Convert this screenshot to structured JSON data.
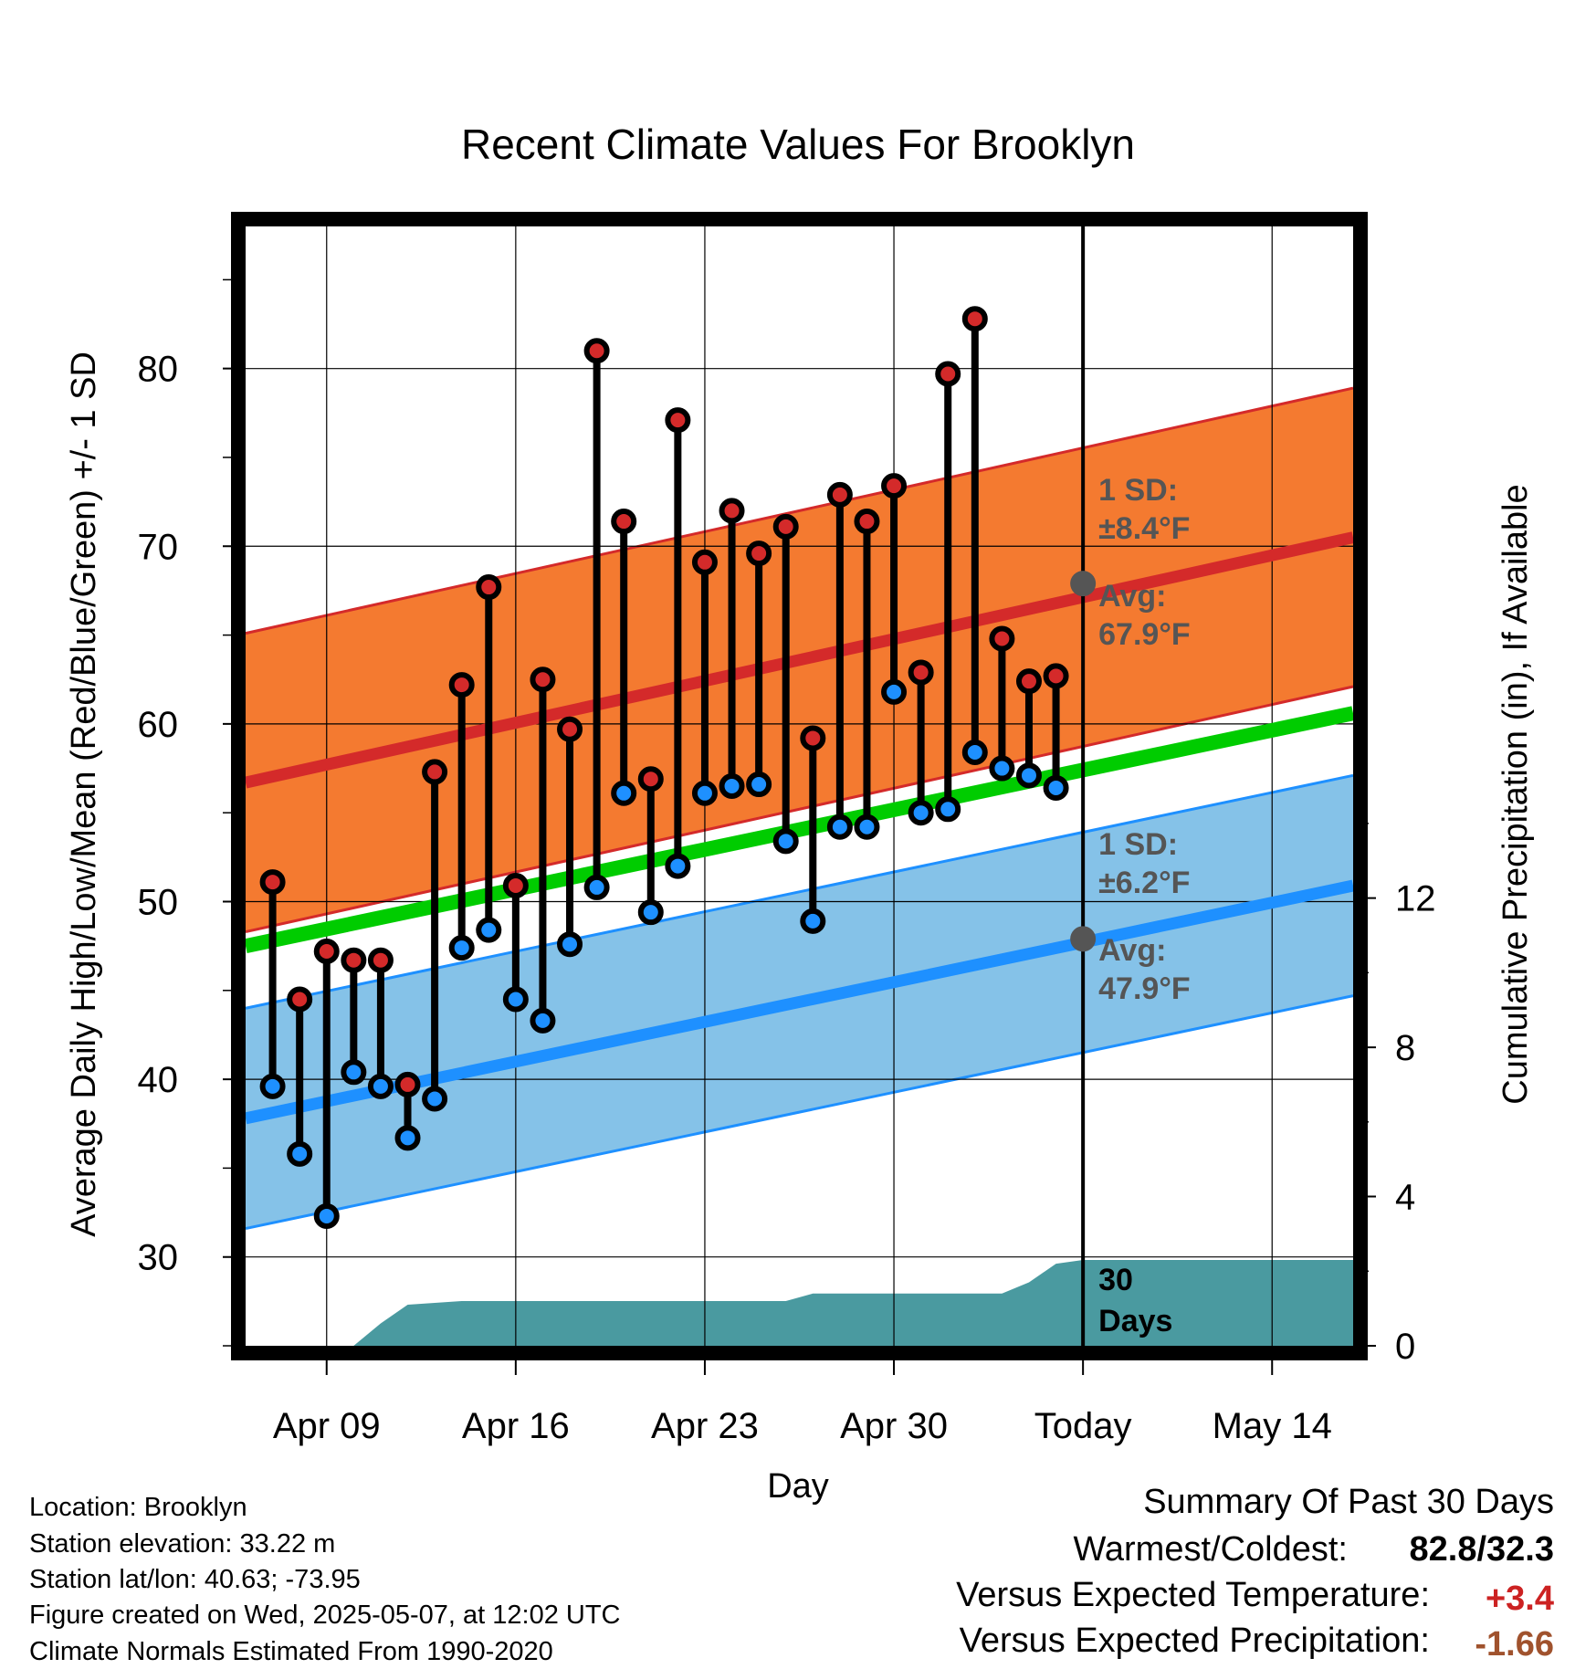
{
  "chart_data": {
    "type": "line",
    "title": "Recent Climate Values For Brooklyn",
    "xlabel": "Day",
    "ylabel": "Average Daily High/Low/Mean (Red/Blue/Green) +/- 1 SD",
    "y2label": "Cumulative Precipitation (in), If Available",
    "ylim": [
      25,
      88
    ],
    "y2lim": [
      0,
      30
    ],
    "xlim": [
      "2025-04-06",
      "2025-05-17"
    ],
    "x_ticks": [
      {
        "date": "2025-04-09",
        "label": "Apr 09"
      },
      {
        "date": "2025-04-16",
        "label": "Apr 16"
      },
      {
        "date": "2025-04-23",
        "label": "Apr 23"
      },
      {
        "date": "2025-04-30",
        "label": "Apr 30"
      },
      {
        "date": "2025-05-07",
        "label": "Today"
      },
      {
        "date": "2025-05-14",
        "label": "May 14"
      }
    ],
    "y_ticks": [
      30,
      40,
      50,
      60,
      70,
      80
    ],
    "y2_ticks": [
      0,
      4,
      8,
      12
    ],
    "grid": true,
    "today": "2025-05-07",
    "daily": [
      {
        "date": "2025-04-07",
        "high": 51.1,
        "low": 39.6
      },
      {
        "date": "2025-04-08",
        "high": 44.5,
        "low": 35.8
      },
      {
        "date": "2025-04-09",
        "high": 47.2,
        "low": 32.3
      },
      {
        "date": "2025-04-10",
        "high": 46.7,
        "low": 40.4
      },
      {
        "date": "2025-04-11",
        "high": 46.7,
        "low": 39.6
      },
      {
        "date": "2025-04-12",
        "high": 39.7,
        "low": 36.7
      },
      {
        "date": "2025-04-13",
        "high": 57.3,
        "low": 38.9
      },
      {
        "date": "2025-04-14",
        "high": 62.2,
        "low": 47.4
      },
      {
        "date": "2025-04-15",
        "high": 67.7,
        "low": 48.4
      },
      {
        "date": "2025-04-16",
        "high": 50.9,
        "low": 44.5
      },
      {
        "date": "2025-04-17",
        "high": 62.5,
        "low": 43.3
      },
      {
        "date": "2025-04-18",
        "high": 59.7,
        "low": 47.6
      },
      {
        "date": "2025-04-19",
        "high": 81.0,
        "low": 50.8
      },
      {
        "date": "2025-04-20",
        "high": 71.4,
        "low": 56.1
      },
      {
        "date": "2025-04-21",
        "high": 56.9,
        "low": 49.4
      },
      {
        "date": "2025-04-22",
        "high": 77.1,
        "low": 52.0
      },
      {
        "date": "2025-04-23",
        "high": 69.1,
        "low": 56.1
      },
      {
        "date": "2025-04-24",
        "high": 72.0,
        "low": 56.5
      },
      {
        "date": "2025-04-25",
        "high": 69.6,
        "low": 56.6
      },
      {
        "date": "2025-04-26",
        "high": 71.1,
        "low": 53.4
      },
      {
        "date": "2025-04-27",
        "high": 59.2,
        "low": 48.9
      },
      {
        "date": "2025-04-28",
        "high": 72.9,
        "low": 54.2
      },
      {
        "date": "2025-04-29",
        "high": 71.4,
        "low": 54.2
      },
      {
        "date": "2025-04-30",
        "high": 73.4,
        "low": 61.8
      },
      {
        "date": "2025-05-01",
        "high": 62.9,
        "low": 55.0
      },
      {
        "date": "2025-05-02",
        "high": 79.7,
        "low": 55.2
      },
      {
        "date": "2025-05-03",
        "high": 82.8,
        "low": 58.4
      },
      {
        "date": "2025-05-04",
        "high": 64.8,
        "low": 57.5
      },
      {
        "date": "2025-05-05",
        "high": 62.4,
        "low": 57.1
      },
      {
        "date": "2025-05-06",
        "high": 62.7,
        "low": 56.4
      }
    ],
    "normals": {
      "high_mean": {
        "start": 56.7,
        "end": 70.5
      },
      "high_sd": 8.4,
      "low_mean": {
        "start": 37.8,
        "end": 50.9
      },
      "low_sd": 6.2,
      "mean": {
        "start": 47.5,
        "end": 60.6
      }
    },
    "precip_cumulative": [
      {
        "date": "2025-04-06",
        "value": 0
      },
      {
        "date": "2025-04-10",
        "value": 0
      },
      {
        "date": "2025-04-11",
        "value": 0.6
      },
      {
        "date": "2025-04-12",
        "value": 1.1
      },
      {
        "date": "2025-04-14",
        "value": 1.2
      },
      {
        "date": "2025-04-26",
        "value": 1.2
      },
      {
        "date": "2025-04-27",
        "value": 1.4
      },
      {
        "date": "2025-05-04",
        "value": 1.4
      },
      {
        "date": "2025-05-05",
        "value": 1.7
      },
      {
        "date": "2025-05-06",
        "value": 2.2
      },
      {
        "date": "2025-05-07",
        "value": 2.3
      },
      {
        "date": "2025-05-17",
        "value": 2.3
      }
    ],
    "annotations": {
      "high_sd_label": "1 SD:",
      "high_sd_value": "±8.4°F",
      "high_avg_label": "Avg:",
      "high_avg_value": "67.9°F",
      "low_sd_label": "1 SD:",
      "low_sd_value": "±6.2°F",
      "low_avg_label": "Avg:",
      "low_avg_value": "47.9°F",
      "days_label": "30",
      "days_label2": "Days"
    },
    "high_avg_today": 67.9,
    "low_avg_today": 47.9
  },
  "info": {
    "location": "Location: Brooklyn",
    "elevation": "Station elevation: 33.22 m",
    "latlon": "Station lat/lon: 40.63; -73.95",
    "created": "Figure created on Wed, 2025-05-07, at 12:02 UTC",
    "normals": "Climate Normals Estimated From 1990-2020"
  },
  "summary": {
    "title": "Summary Of Past 30 Days",
    "warmest_label": "Warmest/Coldest:",
    "warmest_value": "82.8/32.3",
    "temp_label": "Versus Expected Temperature:",
    "temp_value": "+3.4",
    "precip_label": "Versus Expected Precipitation:",
    "precip_value": "-1.66"
  },
  "colors": {
    "high_band": "#f47a30",
    "high_mean": "#d42a2a",
    "low_band": "#85c2e8",
    "low_mean": "#1e90ff",
    "mean_line": "#00cc00",
    "precip": "#4a9aa0",
    "high_dot": "#d42a2a",
    "low_dot": "#1e90ff",
    "annotation": "#555555",
    "temp_positive": "#cc2222",
    "precip_negative": "#a0522d"
  }
}
